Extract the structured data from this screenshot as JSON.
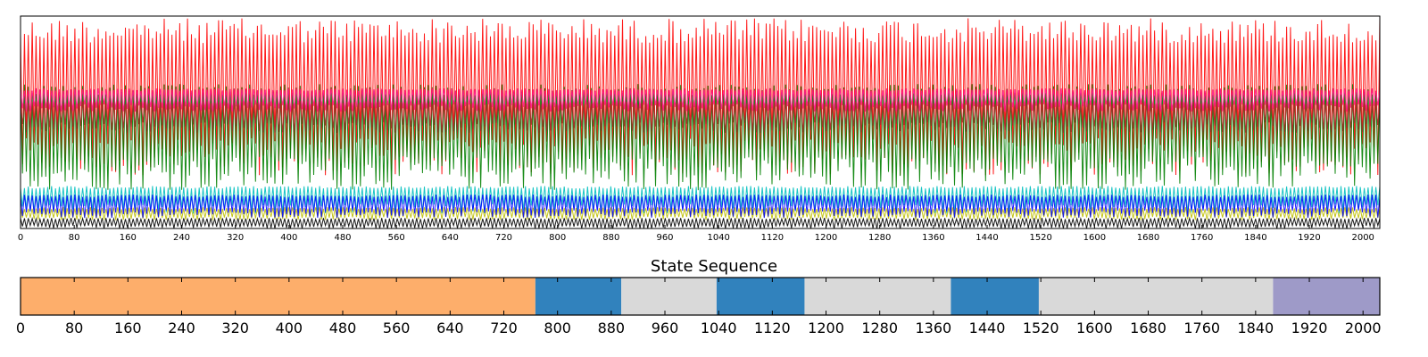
{
  "chart_data": [
    {
      "type": "line",
      "title": "",
      "xlabel": "",
      "ylabel": "",
      "xlim": [
        0,
        2025
      ],
      "ylim": [
        0,
        1
      ],
      "xticks": [
        0,
        80,
        160,
        240,
        320,
        400,
        480,
        560,
        640,
        720,
        800,
        880,
        960,
        1040,
        1120,
        1200,
        1280,
        1360,
        1440,
        1520,
        1600,
        1680,
        1760,
        1840,
        1920,
        2000
      ],
      "grid": false,
      "legend": "none",
      "series": [
        {
          "color": "#ff0000",
          "base": 0.6,
          "high": 0.99,
          "low": 0.25
        },
        {
          "color": "#008000",
          "base": 0.5,
          "high": 0.68,
          "low": 0.18
        },
        {
          "color": "#00bfbf",
          "base": 0.16,
          "high": 0.2,
          "low": 0.07
        },
        {
          "color": "#bfbf00",
          "base": 0.07,
          "high": 0.1,
          "low": 0.04
        },
        {
          "color": "#0000ff",
          "base": 0.12,
          "high": 0.16,
          "low": 0.05
        },
        {
          "color": "#000000",
          "base": 0.03,
          "high": 0.05,
          "low": 0.0
        },
        {
          "color": "#ff1493",
          "base": 0.62,
          "high": 0.66,
          "low": 0.55
        },
        {
          "color": "#a52a2a",
          "base": 0.55,
          "high": 0.6,
          "low": 0.45
        }
      ]
    },
    {
      "type": "heatmap",
      "title": "State Sequence",
      "xlim": [
        0,
        2025
      ],
      "xticks": [
        0,
        80,
        160,
        240,
        320,
        400,
        480,
        560,
        640,
        720,
        800,
        880,
        960,
        1040,
        1120,
        1200,
        1280,
        1360,
        1440,
        1520,
        1600,
        1680,
        1760,
        1840,
        1920,
        2000
      ],
      "segments": [
        {
          "start": 0,
          "end": 767,
          "color": "#fdae6b"
        },
        {
          "start": 767,
          "end": 895,
          "color": "#3182bd"
        },
        {
          "start": 895,
          "end": 1037,
          "color": "#d9d9d9"
        },
        {
          "start": 1037,
          "end": 1168,
          "color": "#3182bd"
        },
        {
          "start": 1168,
          "end": 1386,
          "color": "#d9d9d9"
        },
        {
          "start": 1386,
          "end": 1517,
          "color": "#3182bd"
        },
        {
          "start": 1517,
          "end": 1866,
          "color": "#d9d9d9"
        },
        {
          "start": 1866,
          "end": 2025,
          "color": "#9e9ac8"
        }
      ]
    }
  ]
}
